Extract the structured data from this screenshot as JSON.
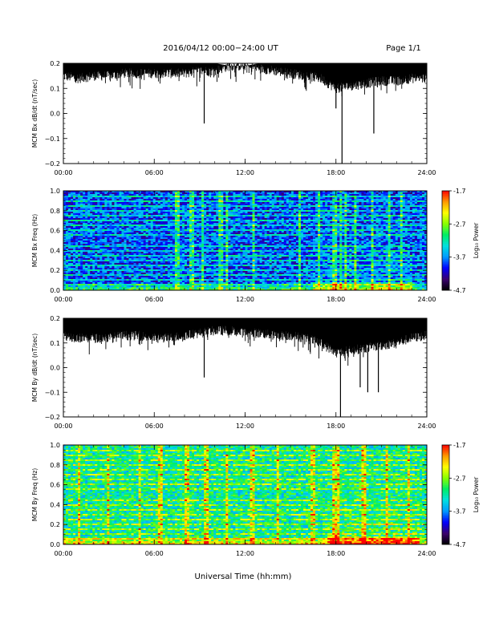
{
  "header": {
    "title": "2016/04/12   00:00−24:00 UT",
    "page": "Page 1/1"
  },
  "xaxis": {
    "title": "Universal Time (hh:mm)",
    "range_hours": [
      0,
      24
    ],
    "tick_labels": [
      "00:00",
      "06:00",
      "12:00",
      "18:00",
      "24:00"
    ]
  },
  "colorbar": {
    "label": "Log₁₀ Power",
    "tick_labels": [
      "-1.7",
      "-2.7",
      "-3.7",
      "-4.7"
    ],
    "tick_values": [
      -1.7,
      -2.7,
      -3.7,
      -4.7
    ],
    "range": [
      -4.7,
      -1.7
    ],
    "colormap": [
      "#000000",
      "#3a006e",
      "#0000ff",
      "#0099ff",
      "#00e0e0",
      "#00ee66",
      "#88ff00",
      "#ffff00",
      "#ff9900",
      "#ff0000"
    ]
  },
  "chart_data": [
    {
      "type": "line",
      "id": "bx-dbdt",
      "ylabel": "MCM Bx dB/dt (nT/sec)",
      "ylim": [
        -0.2,
        0.2
      ],
      "ytick_labels": [
        "0.2",
        "0.1",
        "0.0",
        "−0.1",
        "−0.2"
      ],
      "ytick_values": [
        0.2,
        0.1,
        0.0,
        -0.1,
        -0.2
      ],
      "color": "#000000",
      "note_series": "approximate envelope of dense trace",
      "series": [
        {
          "x_hours": [
            0,
            1,
            2,
            3,
            4,
            5,
            6,
            7,
            8,
            9,
            10,
            11,
            12,
            13,
            14,
            15,
            16,
            17,
            18,
            19,
            20,
            21,
            22,
            23,
            24
          ],
          "upper": [
            0.2,
            0.2,
            0.2,
            0.2,
            0.2,
            0.2,
            0.2,
            0.2,
            0.2,
            0.2,
            0.2,
            0.19,
            0.19,
            0.2,
            0.2,
            0.2,
            0.2,
            0.2,
            0.2,
            0.2,
            0.2,
            0.2,
            0.2,
            0.2,
            0.2
          ],
          "lower": [
            0.13,
            0.12,
            0.13,
            0.13,
            0.14,
            0.14,
            0.14,
            0.14,
            0.14,
            0.15,
            0.15,
            0.17,
            0.17,
            0.16,
            0.15,
            0.14,
            0.13,
            0.12,
            0.08,
            0.09,
            0.1,
            0.11,
            0.11,
            0.12,
            0.12
          ]
        }
      ],
      "spikes": [
        {
          "x_hours": 9.3,
          "y": -0.04
        },
        {
          "x_hours": 18.4,
          "y": -0.2
        },
        {
          "x_hours": 20.5,
          "y": -0.08
        },
        {
          "x_hours": 18.0,
          "y": 0.02
        }
      ]
    },
    {
      "type": "heatmap",
      "id": "bx-spectrogram",
      "ylabel": "MCM Bx Freq (Hz)",
      "ylim": [
        0.0,
        1.0
      ],
      "ytick_labels": [
        "1.0",
        "0.8",
        "0.6",
        "0.4",
        "0.2",
        "0.0"
      ],
      "ytick_values": [
        1.0,
        0.8,
        0.6,
        0.4,
        0.2,
        0.0
      ],
      "z_range": [
        -4.7,
        -1.7
      ],
      "harmonic_lines_hz": [
        0.05,
        0.1,
        0.15,
        0.2,
        0.25,
        0.3,
        0.35,
        0.4,
        0.45,
        0.5,
        0.55,
        0.6,
        0.65,
        0.7,
        0.75,
        0.8,
        0.85,
        0.9,
        0.95,
        1.0
      ],
      "vertical_streaks_hours": [
        7.5,
        8.5,
        9.2,
        10.4,
        10.8,
        12.6,
        15.6,
        16.9,
        17.9,
        18.3,
        18.6,
        19.3,
        20.4,
        21.5,
        22.3
      ],
      "background_level": -3.9,
      "enhanced_region_hours": [
        16.5,
        23.0
      ]
    },
    {
      "type": "line",
      "id": "by-dbdt",
      "ylabel": "MCM By dB/dt (nT/sec)",
      "ylim": [
        -0.2,
        0.2
      ],
      "ytick_labels": [
        "0.2",
        "0.1",
        "0.0",
        "−0.1",
        "−0.2"
      ],
      "ytick_values": [
        0.2,
        0.1,
        0.0,
        -0.1,
        -0.2
      ],
      "color": "#000000",
      "note_series": "approximate envelope of dense trace",
      "series": [
        {
          "x_hours": [
            0,
            1,
            2,
            3,
            4,
            5,
            6,
            7,
            8,
            9,
            10,
            11,
            12,
            13,
            14,
            15,
            16,
            17,
            18,
            19,
            20,
            21,
            22,
            23,
            24
          ],
          "upper": [
            0.2,
            0.2,
            0.2,
            0.2,
            0.2,
            0.2,
            0.2,
            0.2,
            0.2,
            0.2,
            0.2,
            0.2,
            0.2,
            0.2,
            0.2,
            0.2,
            0.2,
            0.2,
            0.2,
            0.2,
            0.2,
            0.2,
            0.2,
            0.2,
            0.2
          ],
          "lower": [
            0.11,
            0.1,
            0.1,
            0.1,
            0.11,
            0.11,
            0.1,
            0.1,
            0.11,
            0.12,
            0.13,
            0.13,
            0.12,
            0.12,
            0.11,
            0.11,
            0.1,
            0.08,
            0.04,
            0.05,
            0.06,
            0.07,
            0.08,
            0.1,
            0.11
          ]
        }
      ],
      "spikes": [
        {
          "x_hours": 9.3,
          "y": -0.04
        },
        {
          "x_hours": 18.3,
          "y": -0.2
        },
        {
          "x_hours": 20.1,
          "y": -0.1
        },
        {
          "x_hours": 20.8,
          "y": -0.1
        },
        {
          "x_hours": 19.6,
          "y": -0.08
        }
      ]
    },
    {
      "type": "heatmap",
      "id": "by-spectrogram",
      "ylabel": "MCM By Freq (Hz)",
      "ylim": [
        0.0,
        1.0
      ],
      "ytick_labels": [
        "1.0",
        "0.8",
        "0.6",
        "0.4",
        "0.2",
        "0.0"
      ],
      "ytick_values": [
        1.0,
        0.8,
        0.6,
        0.4,
        0.2,
        0.0
      ],
      "z_range": [
        -4.7,
        -1.7
      ],
      "harmonic_lines_hz": [
        0.05,
        0.1,
        0.15,
        0.2,
        0.25,
        0.3,
        0.35,
        0.4,
        0.45,
        0.5,
        0.55,
        0.6,
        0.65,
        0.7,
        0.75,
        0.8,
        0.85,
        0.9,
        0.95,
        1.0
      ],
      "vertical_streaks_hours": [
        1.0,
        3.0,
        5.0,
        6.4,
        8.2,
        9.4,
        10.8,
        12.5,
        14.2,
        16.5,
        17.9,
        18.2,
        19.8,
        21.4,
        22.8
      ],
      "background_level": -3.2,
      "enhanced_region_hours": [
        17.5,
        23.5
      ]
    }
  ]
}
